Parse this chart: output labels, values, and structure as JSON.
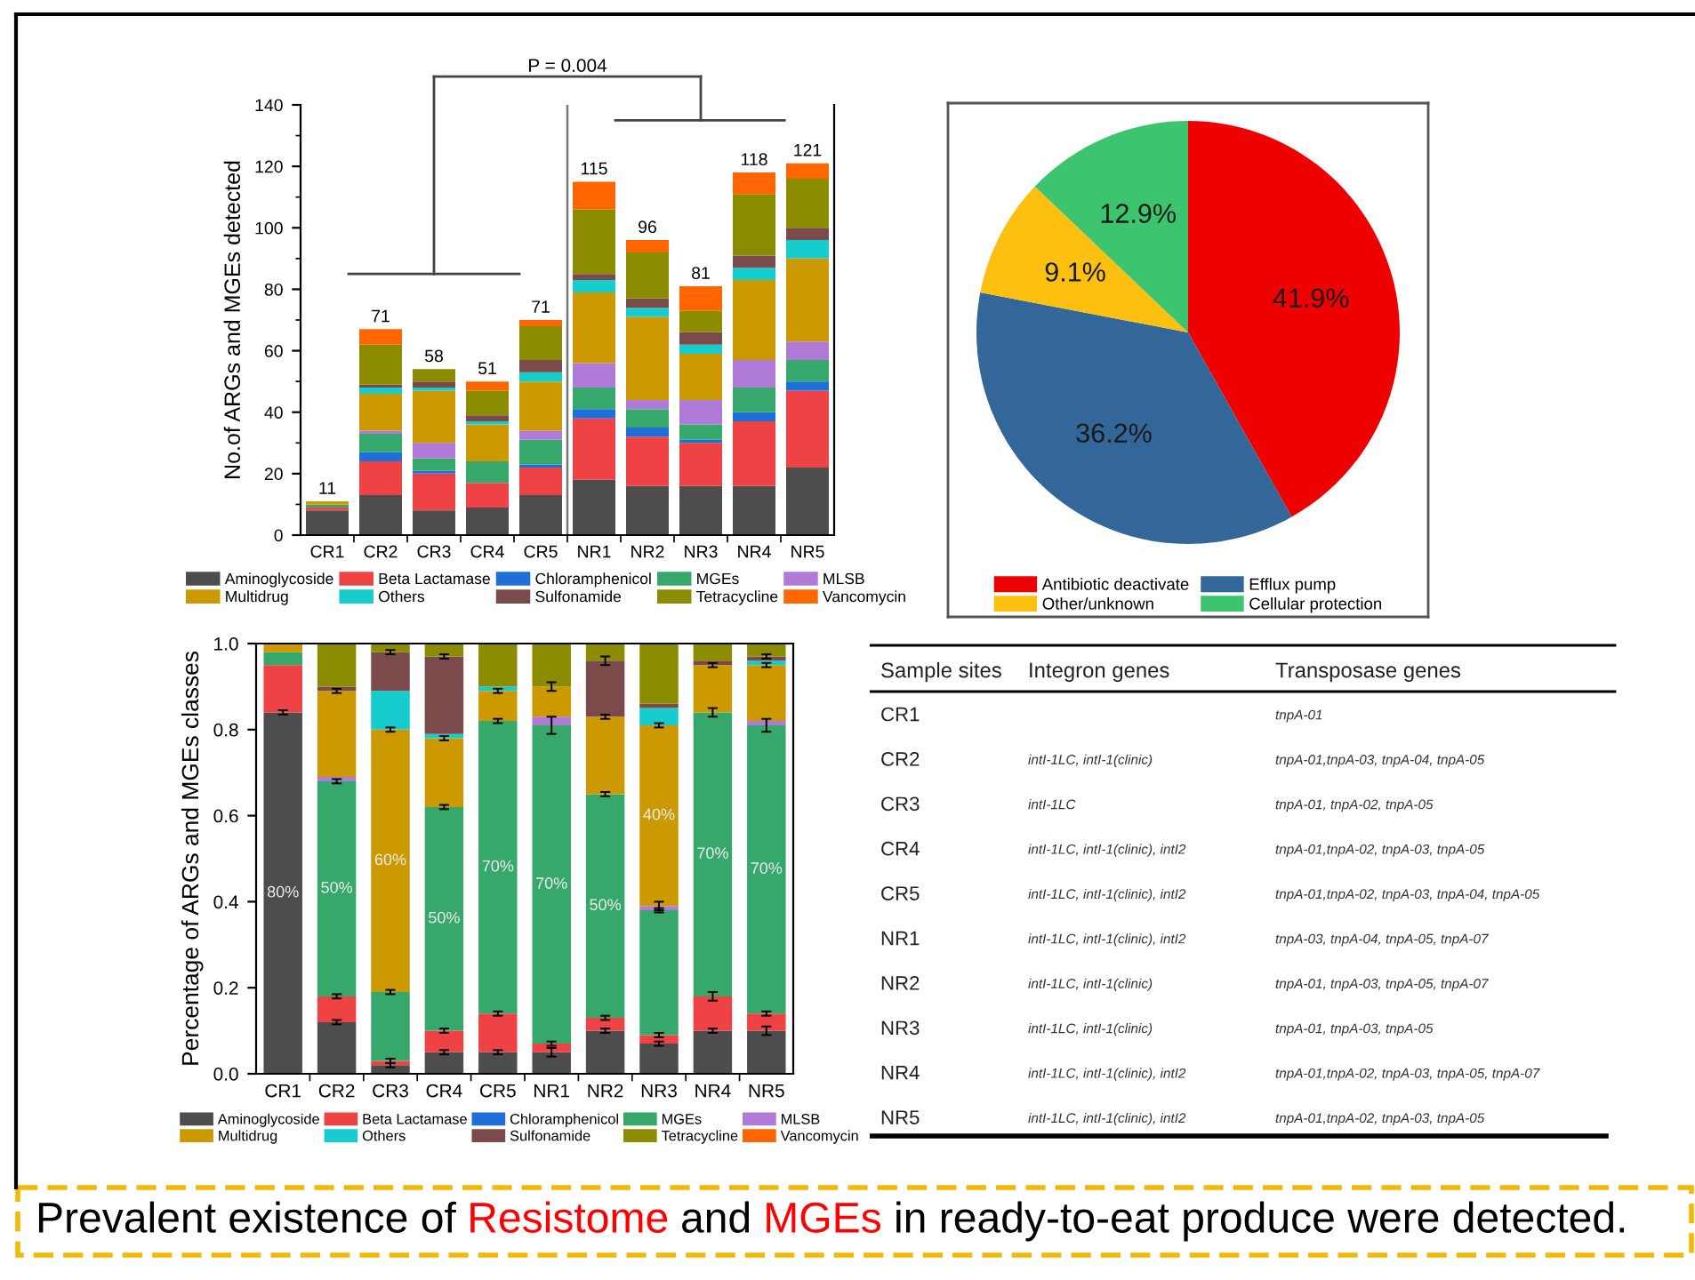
{
  "chart_data": [
    {
      "type": "bar",
      "stacked": true,
      "ylabel": "No.of ARGs and MGEs detected",
      "categories": [
        "CR1",
        "CR2",
        "CR3",
        "CR4",
        "CR5",
        "NR1",
        "NR2",
        "NR3",
        "NR4",
        "NR5"
      ],
      "series": [
        {
          "name": "Aminoglycoside",
          "color": "#4d4d4d",
          "values": [
            8,
            13,
            8,
            9,
            13,
            18,
            16,
            16,
            16,
            22
          ]
        },
        {
          "name": "Beta Lactamase",
          "color": "#ee4244",
          "values": [
            1,
            11,
            12,
            8,
            9,
            20,
            16,
            14,
            21,
            25
          ]
        },
        {
          "name": "Chloramphenicol",
          "color": "#1f6fdb",
          "values": [
            null,
            3,
            1,
            null,
            1,
            3,
            3,
            1,
            3,
            3
          ]
        },
        {
          "name": "MGEs",
          "color": "#37a86b",
          "values": [
            1,
            6,
            4,
            7,
            8,
            7,
            6,
            5,
            8,
            7
          ]
        },
        {
          "name": "MLSB",
          "color": "#b07ad8",
          "values": [
            null,
            1,
            5,
            null,
            3,
            8,
            3,
            8,
            9,
            6
          ]
        },
        {
          "name": "Multidrug",
          "color": "#cc9900",
          "values": [
            1,
            12,
            17,
            12,
            16,
            23,
            27,
            15,
            26,
            27
          ]
        },
        {
          "name": "Others",
          "color": "#16cccc",
          "values": [
            null,
            2,
            1,
            1,
            3,
            4,
            3,
            3,
            4,
            6
          ]
        },
        {
          "name": "Sulfonamide",
          "color": "#7b4b4b",
          "values": [
            null,
            1,
            2,
            2,
            4,
            2,
            3,
            4,
            4,
            4
          ]
        },
        {
          "name": "Tetracycline",
          "color": "#8c8c00",
          "values": [
            null,
            13,
            4,
            8,
            11,
            21,
            15,
            7,
            20,
            16
          ]
        },
        {
          "name": "Vancomycin",
          "color": "#ff6600",
          "values": [
            null,
            5,
            null,
            3,
            2,
            9,
            4,
            8,
            7,
            5
          ]
        }
      ],
      "ylim": [
        0,
        140
      ],
      "yticks": [
        0,
        {
          "value": 10,
          "label": null
        },
        20,
        {
          "value": 30,
          "label": null
        },
        40,
        {
          "value": 50,
          "label": null
        },
        60,
        {
          "value": 70,
          "label": null
        },
        80,
        {
          "value": 90,
          "label": null
        },
        100,
        {
          "value": 110,
          "label": null
        },
        120,
        {
          "value": 130,
          "label": null
        },
        140
      ],
      "totals": [
        "11",
        "71",
        "58",
        "51",
        "71",
        "115",
        "96",
        "81",
        "118",
        "121"
      ],
      "annotations": [
        "P = 0.004"
      ],
      "legend": "bottom"
    },
    {
      "type": "pie",
      "categories": [
        "Antibiotic deactivate",
        "Efflux pump",
        "Other/unknown",
        "Cellular protection"
      ],
      "values": [
        41.9,
        36.2,
        9.1,
        12.9
      ],
      "colors": [
        "#ee0000",
        "#336699",
        "#fdc010",
        "#3cc46e"
      ],
      "value_labels": [
        "41.9%",
        "36.2%",
        "9.1%",
        "12.9%"
      ],
      "legend": "bottom"
    },
    {
      "type": "bar",
      "stacked": true,
      "ylabel": "Percentage of ARGs and MGEs classes",
      "categories": [
        "CR1",
        "CR2",
        "CR3",
        "CR4",
        "CR5",
        "NR1",
        "NR2",
        "NR3",
        "NR4",
        "NR5"
      ],
      "series": [
        {
          "name": "Aminoglycoside",
          "color": "#4d4d4d",
          "values": [
            0.84,
            0.12,
            0.02,
            0.05,
            0.05,
            0.05,
            0.1,
            0.07,
            0.1,
            0.1
          ],
          "errors": [
            0.005,
            0.005,
            0.005,
            0.005,
            0.005,
            0.01,
            0.005,
            0.005,
            0.005,
            0.01
          ]
        },
        {
          "name": "Beta Lactamase",
          "color": "#ee4244",
          "values": [
            0.11,
            0.06,
            0.01,
            0.05,
            0.09,
            0.02,
            0.03,
            0.02,
            0.08,
            0.04
          ],
          "errors": [
            null,
            0.005,
            0.005,
            0.005,
            0.005,
            0.005,
            0.005,
            0.005,
            0.01,
            0.005
          ]
        },
        {
          "name": "Chloramphenicol",
          "color": "#1f6fdb",
          "values": [
            null,
            null,
            null,
            null,
            null,
            null,
            null,
            null,
            null,
            null
          ]
        },
        {
          "name": "MGEs",
          "color": "#37a86b",
          "values": [
            0.03,
            0.5,
            0.16,
            0.52,
            0.68,
            0.74,
            0.52,
            0.29,
            0.66,
            0.67
          ],
          "errors": [
            null,
            0.005,
            0.005,
            0.005,
            0.005,
            0.02,
            0.005,
            0.005,
            0.01,
            0.015
          ]
        },
        {
          "name": "MLSB",
          "color": "#b07ad8",
          "values": [
            null,
            0.01,
            null,
            null,
            null,
            0.02,
            null,
            0.01,
            null,
            0.01
          ],
          "errors": [
            null,
            null,
            null,
            null,
            null,
            null,
            null,
            0.01,
            null,
            null
          ]
        },
        {
          "name": "Multidrug",
          "color": "#cc9900",
          "values": [
            0.02,
            0.2,
            0.61,
            0.16,
            0.07,
            0.07,
            0.18,
            0.42,
            0.11,
            0.13
          ],
          "errors": [
            null,
            0.005,
            0.005,
            0.005,
            0.005,
            0.01,
            0.005,
            0.005,
            0.005,
            0.005
          ]
        },
        {
          "name": "Others",
          "color": "#16cccc",
          "values": [
            null,
            null,
            0.09,
            0.01,
            0.01,
            null,
            null,
            0.04,
            null,
            0.01
          ]
        },
        {
          "name": "Sulfonamide",
          "color": "#7b4b4b",
          "values": [
            null,
            0.01,
            0.09,
            0.18,
            null,
            null,
            0.13,
            0.01,
            0.01,
            0.01
          ],
          "errors": [
            null,
            null,
            0.005,
            0.005,
            null,
            null,
            0.01,
            null,
            null,
            0.005
          ]
        },
        {
          "name": "Tetracycline",
          "color": "#8c8c00",
          "values": [
            null,
            0.1,
            0.02,
            0.03,
            0.1,
            0.1,
            0.04,
            0.14,
            0.04,
            0.03
          ]
        },
        {
          "name": "Vancomycin",
          "color": "#ff6600",
          "values": [
            null,
            null,
            null,
            null,
            null,
            null,
            null,
            null,
            null,
            null
          ]
        }
      ],
      "ylim": [
        0,
        1
      ],
      "yticks": [
        {
          "value": 0,
          "label": "0.0"
        },
        {
          "value": 0.2,
          "label": "0.2"
        },
        {
          "value": 0.4,
          "label": "0.4"
        },
        {
          "value": 0.6,
          "label": "0.6"
        },
        {
          "value": 0.8,
          "label": "0.8"
        },
        {
          "value": 1,
          "label": "1.0"
        }
      ],
      "annotations": [
        "80%",
        "50%",
        "60%",
        "50%",
        "70%",
        "70%",
        "50%",
        "40%",
        "70%",
        "70%"
      ],
      "legend": "bottom"
    },
    {
      "type": "other",
      "categories": [
        "Sample sites",
        "Integron genes",
        "Transposase genes"
      ],
      "y_categories": [
        "CR1",
        "CR2",
        "CR3",
        "CR4",
        "CR5",
        "NR1",
        "NR2",
        "NR3",
        "NR4",
        "NR5"
      ],
      "cell_labels": [
        [
          null,
          "tnpA-01"
        ],
        [
          "intI-1LC, intI-1(clinic)",
          "tnpA-01,tnpA-03, tnpA-04, tnpA-05"
        ],
        [
          "intI-1LC",
          "tnpA-01, tnpA-02, tnpA-05"
        ],
        [
          "intI-1LC, intI-1(clinic), intI2",
          "tnpA-01,tnpA-02, tnpA-03, tnpA-05"
        ],
        [
          "intI-1LC, intI-1(clinic), intI2",
          "tnpA-01,tnpA-02, tnpA-03, tnpA-04, tnpA-05"
        ],
        [
          "intI-1LC, intI-1(clinic), intI2",
          "tnpA-03, tnpA-04, tnpA-05, tnpA-07"
        ],
        [
          "intI-1LC, intI-1(clinic)",
          "tnpA-01, tnpA-03, tnpA-05, tnpA-07"
        ],
        [
          "intI-1LC, intI-1(clinic)",
          "tnpA-01, tnpA-03, tnpA-05"
        ],
        [
          "intI-1LC, intI-1(clinic), intI2",
          "tnpA-01,tnpA-02, tnpA-03, tnpA-05, tnpA-07"
        ],
        [
          "intI-1LC, intI-1(clinic), intI2",
          "tnpA-01,tnpA-02, tnpA-03, tnpA-05"
        ]
      ]
    },
    {
      "type": "other",
      "annotations": [
        "Prevalent existence of",
        "Resistome",
        "and",
        "MGEs",
        "in ready-to-eat produce were detected."
      ],
      "colors": [
        "#000000",
        "#ff0000",
        "#000000",
        "#ff0000",
        "#000000"
      ]
    }
  ]
}
